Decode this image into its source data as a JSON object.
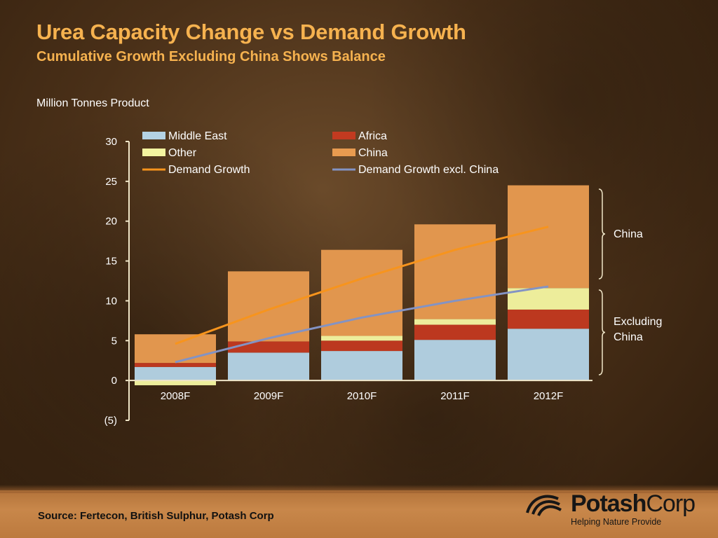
{
  "title": "Urea Capacity Change vs Demand Growth",
  "subtitle": "Cumulative Growth Excluding China Shows Balance",
  "units": "Million Tonnes Product",
  "source": "Source: Fertecon, British Sulphur, Potash Corp",
  "logo": {
    "name_bold": "Potash",
    "name_regular": "Corp",
    "tagline": "Helping Nature Provide"
  },
  "brackets": {
    "china": "China",
    "excl_line1": "Excluding",
    "excl_line2": "China"
  },
  "chart_data": {
    "type": "bar",
    "stacked": true,
    "categories": [
      "2008F",
      "2009F",
      "2010F",
      "2011F",
      "2012F"
    ],
    "ylim": [
      -5,
      30
    ],
    "yticks": [
      30,
      25,
      20,
      15,
      10,
      5,
      0,
      -5
    ],
    "ytick_labels": [
      "30",
      "25",
      "20",
      "15",
      "10",
      "5",
      "0",
      "(5)"
    ],
    "series": [
      {
        "name": "Middle East",
        "color": "#b4d2e4",
        "values": [
          1.7,
          3.5,
          3.7,
          5.1,
          6.5
        ]
      },
      {
        "name": "Africa",
        "color": "#c23a20",
        "values": [
          0.5,
          1.4,
          1.3,
          1.9,
          2.4
        ]
      },
      {
        "name": "Other",
        "color": "#f4f4a0",
        "values": [
          -0.6,
          0.0,
          0.6,
          0.7,
          2.7
        ]
      },
      {
        "name": "China",
        "color": "#e89b50",
        "values": [
          3.6,
          8.8,
          10.8,
          11.9,
          12.9
        ]
      }
    ],
    "lines": [
      {
        "name": "Demand Growth",
        "color": "#f7941d",
        "values": [
          4.6,
          8.9,
          12.8,
          16.4,
          19.3
        ]
      },
      {
        "name": "Demand Growth excl. China",
        "color": "#8393c4",
        "values": [
          2.3,
          5.3,
          7.9,
          10.0,
          11.8
        ]
      }
    ]
  }
}
